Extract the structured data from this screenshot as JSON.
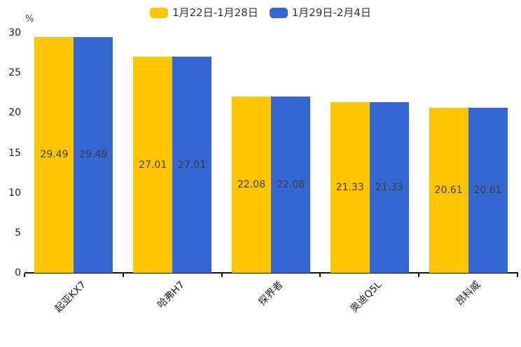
{
  "chart_data": {
    "type": "bar",
    "title": "",
    "categories": [
      "起亚KX7",
      "哈弗H7",
      "探界者",
      "奥迪Q5L",
      "昂科威"
    ],
    "series": [
      {
        "name": "1月22日-1月28日",
        "color": "#FDC500",
        "values": [
          29.49,
          27.01,
          22.08,
          21.33,
          20.61
        ]
      },
      {
        "name": "1月29日-2月4日",
        "color": "#3467D1",
        "values": [
          29.49,
          27.01,
          22.08,
          21.33,
          20.61
        ]
      }
    ],
    "xlabel": "",
    "ylabel": "%",
    "yticks": [
      0,
      5,
      10,
      15,
      20,
      25,
      30
    ],
    "ylim": [
      0,
      30
    ],
    "grid": false,
    "legend_position": "top",
    "data_labels": true,
    "data_label_color": "#3e3e3e",
    "axis_color": "#111111",
    "tick_label_color": "#1f1f1f"
  }
}
